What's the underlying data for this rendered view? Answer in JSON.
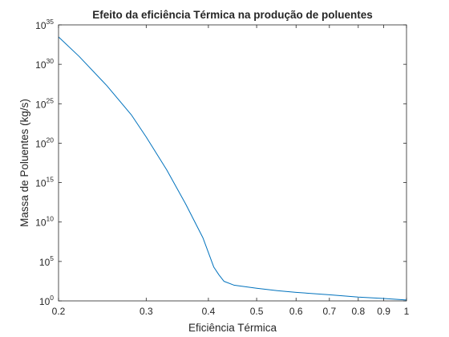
{
  "chart_data": {
    "type": "line",
    "title": "Efeito da eficiência Térmica na produção de poluentes",
    "xlabel": "Eficiência Térmica",
    "ylabel": "Massa de Poluentes (kg/s)",
    "xscale": "log",
    "yscale": "log",
    "xlim": [
      0.2,
      1
    ],
    "ylim": [
      1,
      1e+35
    ],
    "xticks": [
      0.2,
      0.3,
      0.4,
      0.5,
      0.6,
      0.7,
      0.8,
      0.9,
      1
    ],
    "xtick_labels": [
      "0.2",
      "0.3",
      "0.4",
      "0.5",
      "0.6",
      "0.7",
      "0.8",
      "0.9",
      "1"
    ],
    "yticks": [
      {
        "base": "10",
        "exp": "0"
      },
      {
        "base": "10",
        "exp": "5"
      },
      {
        "base": "10",
        "exp": "10"
      },
      {
        "base": "10",
        "exp": "15"
      },
      {
        "base": "10",
        "exp": "20"
      },
      {
        "base": "10",
        "exp": "25"
      },
      {
        "base": "10",
        "exp": "30"
      },
      {
        "base": "10",
        "exp": "35"
      }
    ],
    "grid": false,
    "line_color": "#0072bd",
    "series": [
      {
        "x": [
          0.2,
          0.22,
          0.25,
          0.28,
          0.3,
          0.33,
          0.36,
          0.39,
          0.41,
          0.42,
          0.43,
          0.45,
          0.5,
          0.55,
          0.6,
          0.7,
          0.8,
          0.9,
          1.0
        ],
        "y": [
          3e+33,
          1e+31,
          2e+27,
          4e+23,
          6e+20,
          4e+16,
          2000000000000.0,
          100000000.0,
          20000.0,
          2000.0,
          300.0,
          100.0,
          40,
          20,
          12,
          6,
          3,
          2,
          1.3
        ]
      }
    ]
  }
}
